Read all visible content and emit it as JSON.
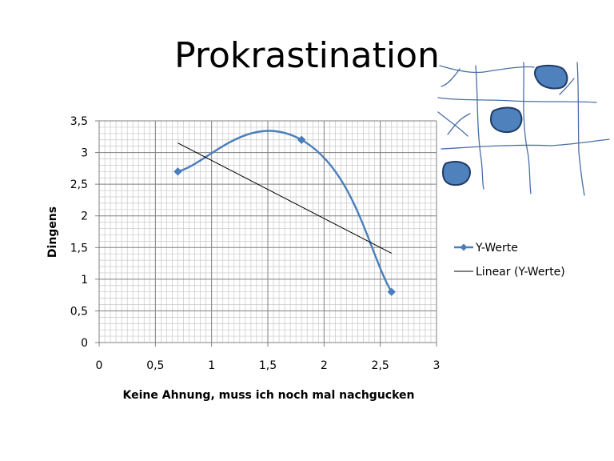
{
  "slide": {
    "title": "Prokrastination"
  },
  "chart_data": {
    "type": "scatter",
    "title": "",
    "xlabel": "Keine Ahnung, muss ich noch mal nachgucken",
    "ylabel": "Dingens",
    "xlim": [
      0,
      3
    ],
    "ylim": [
      0,
      3.5
    ],
    "x_ticks": [
      "0",
      "0,5",
      "1",
      "1,5",
      "2",
      "2,5",
      "3"
    ],
    "y_ticks": [
      "0",
      "0,5",
      "1",
      "1,5",
      "2",
      "2,5",
      "3",
      "3,5"
    ],
    "grid": true,
    "legend_position": "right",
    "series": [
      {
        "name": "Y-Werte",
        "style": "smooth-line-with-markers",
        "color": "#4a7ebb",
        "x": [
          0.7,
          1.8,
          2.6
        ],
        "y": [
          2.7,
          3.2,
          0.8
        ]
      },
      {
        "name": "Linear (Y-Werte)",
        "style": "trendline",
        "color": "#000000",
        "x": [
          0.7,
          2.6
        ],
        "y": [
          3.15,
          1.41
        ]
      }
    ]
  },
  "decoration": {
    "kind": "hand-drawn map sketch",
    "stroke": "#4a6fa5",
    "fill": "#4f81bd"
  }
}
